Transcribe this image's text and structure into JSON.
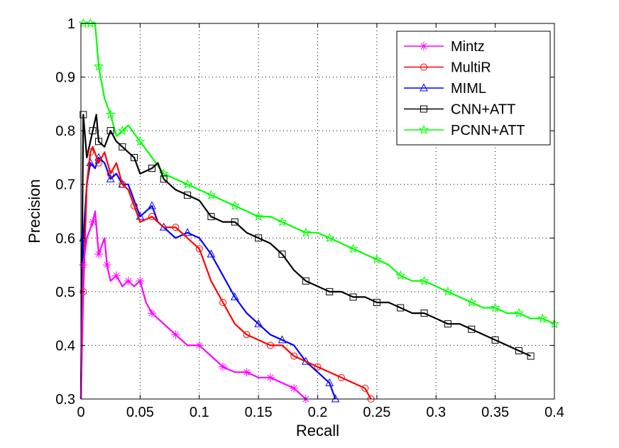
{
  "chart_data": {
    "type": "line",
    "xlabel": "Recall",
    "ylabel": "Precision",
    "xlim": [
      0,
      0.4
    ],
    "ylim": [
      0.3,
      1.0
    ],
    "xticks": [
      "0",
      "0.05",
      "0.1",
      "0.15",
      "0.2",
      "0.25",
      "0.3",
      "0.35",
      "0.4"
    ],
    "yticks": [
      "0.3",
      "0.4",
      "0.5",
      "0.6",
      "0.7",
      "0.8",
      "0.9",
      "1"
    ],
    "grid": true,
    "legend_position": "top-right",
    "series": [
      {
        "name": "Mintz",
        "color": "#ff00ff",
        "marker": "star",
        "x": [
          0.0,
          0.002,
          0.005,
          0.01,
          0.012,
          0.015,
          0.02,
          0.022,
          0.025,
          0.03,
          0.035,
          0.04,
          0.045,
          0.05,
          0.055,
          0.06,
          0.07,
          0.08,
          0.09,
          0.1,
          0.11,
          0.12,
          0.13,
          0.14,
          0.15,
          0.16,
          0.17,
          0.18,
          0.19
        ],
        "y": [
          0.3,
          0.55,
          0.6,
          0.63,
          0.65,
          0.57,
          0.6,
          0.55,
          0.52,
          0.53,
          0.51,
          0.52,
          0.51,
          0.52,
          0.48,
          0.46,
          0.44,
          0.42,
          0.4,
          0.4,
          0.38,
          0.36,
          0.35,
          0.35,
          0.34,
          0.34,
          0.33,
          0.32,
          0.3
        ]
      },
      {
        "name": "MultiR",
        "color": "#ff0000",
        "marker": "circle",
        "x": [
          0.0,
          0.002,
          0.005,
          0.008,
          0.01,
          0.015,
          0.02,
          0.025,
          0.03,
          0.035,
          0.04,
          0.045,
          0.05,
          0.06,
          0.07,
          0.08,
          0.09,
          0.1,
          0.11,
          0.12,
          0.13,
          0.14,
          0.15,
          0.16,
          0.17,
          0.18,
          0.19,
          0.2,
          0.21,
          0.22,
          0.23,
          0.24,
          0.245
        ],
        "y": [
          0.3,
          0.5,
          0.7,
          0.76,
          0.77,
          0.74,
          0.76,
          0.72,
          0.74,
          0.7,
          0.69,
          0.66,
          0.63,
          0.64,
          0.62,
          0.62,
          0.6,
          0.58,
          0.52,
          0.48,
          0.44,
          0.42,
          0.41,
          0.4,
          0.4,
          0.38,
          0.37,
          0.36,
          0.35,
          0.34,
          0.33,
          0.32,
          0.3
        ]
      },
      {
        "name": "MIML",
        "color": "#0000ff",
        "marker": "triangle",
        "x": [
          0.0,
          0.002,
          0.005,
          0.008,
          0.012,
          0.015,
          0.02,
          0.025,
          0.03,
          0.035,
          0.04,
          0.05,
          0.055,
          0.06,
          0.065,
          0.07,
          0.08,
          0.09,
          0.1,
          0.11,
          0.12,
          0.13,
          0.14,
          0.15,
          0.16,
          0.17,
          0.18,
          0.19,
          0.2,
          0.21,
          0.215
        ],
        "y": [
          0.3,
          0.6,
          0.7,
          0.74,
          0.73,
          0.75,
          0.74,
          0.71,
          0.72,
          0.7,
          0.7,
          0.64,
          0.65,
          0.66,
          0.63,
          0.62,
          0.6,
          0.61,
          0.6,
          0.57,
          0.53,
          0.49,
          0.46,
          0.44,
          0.42,
          0.41,
          0.4,
          0.37,
          0.35,
          0.33,
          0.3
        ]
      },
      {
        "name": "CNN+ATT",
        "color": "#000000",
        "marker": "square",
        "x": [
          0.0,
          0.002,
          0.005,
          0.01,
          0.013,
          0.015,
          0.02,
          0.025,
          0.03,
          0.035,
          0.04,
          0.045,
          0.05,
          0.06,
          0.065,
          0.07,
          0.08,
          0.09,
          0.1,
          0.11,
          0.12,
          0.13,
          0.14,
          0.15,
          0.16,
          0.17,
          0.18,
          0.19,
          0.2,
          0.21,
          0.22,
          0.23,
          0.24,
          0.25,
          0.26,
          0.27,
          0.28,
          0.29,
          0.3,
          0.31,
          0.32,
          0.33,
          0.34,
          0.35,
          0.36,
          0.37,
          0.38
        ],
        "y": [
          0.3,
          0.83,
          0.75,
          0.8,
          0.83,
          0.78,
          0.77,
          0.8,
          0.78,
          0.77,
          0.76,
          0.75,
          0.72,
          0.73,
          0.74,
          0.71,
          0.69,
          0.68,
          0.67,
          0.64,
          0.63,
          0.63,
          0.61,
          0.6,
          0.59,
          0.57,
          0.54,
          0.52,
          0.51,
          0.5,
          0.5,
          0.49,
          0.49,
          0.48,
          0.48,
          0.47,
          0.46,
          0.46,
          0.45,
          0.44,
          0.44,
          0.43,
          0.42,
          0.41,
          0.4,
          0.39,
          0.38
        ]
      },
      {
        "name": "PCNN+ATT",
        "color": "#00ff00",
        "marker": "pentagram",
        "x": [
          0.0,
          0.002,
          0.005,
          0.008,
          0.012,
          0.015,
          0.02,
          0.025,
          0.03,
          0.035,
          0.04,
          0.05,
          0.06,
          0.07,
          0.08,
          0.09,
          0.1,
          0.11,
          0.12,
          0.13,
          0.14,
          0.15,
          0.16,
          0.17,
          0.18,
          0.19,
          0.2,
          0.21,
          0.22,
          0.23,
          0.24,
          0.25,
          0.26,
          0.27,
          0.28,
          0.29,
          0.3,
          0.31,
          0.32,
          0.33,
          0.34,
          0.35,
          0.36,
          0.37,
          0.38,
          0.39,
          0.4
        ],
        "y": [
          1.0,
          1.0,
          1.0,
          1.0,
          1.0,
          0.92,
          0.86,
          0.83,
          0.79,
          0.8,
          0.81,
          0.78,
          0.75,
          0.72,
          0.71,
          0.7,
          0.69,
          0.68,
          0.67,
          0.66,
          0.65,
          0.64,
          0.64,
          0.63,
          0.62,
          0.61,
          0.61,
          0.6,
          0.59,
          0.58,
          0.57,
          0.56,
          0.55,
          0.53,
          0.52,
          0.52,
          0.51,
          0.5,
          0.49,
          0.48,
          0.47,
          0.47,
          0.46,
          0.46,
          0.45,
          0.45,
          0.44
        ]
      }
    ]
  }
}
